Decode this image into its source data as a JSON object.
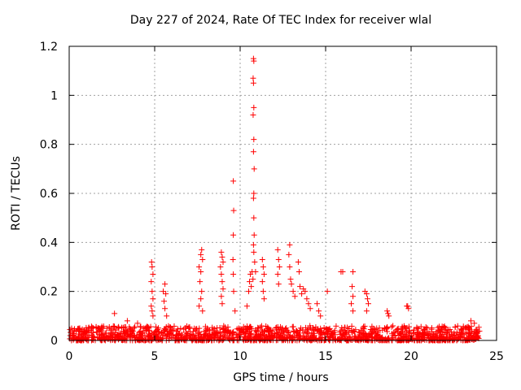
{
  "chart_data": {
    "type": "scatter",
    "title": "Day 227 of 2024, Rate Of TEC Index for receiver wlal",
    "xlabel": "GPS time / hours",
    "ylabel": "ROTI / TECUs",
    "xlim": [
      0,
      25
    ],
    "ylim": [
      0,
      1.2
    ],
    "xticks": [
      "0",
      "5",
      "10",
      "15",
      "20",
      "25"
    ],
    "yticks": [
      "0",
      "0.2",
      "0.4",
      "0.6",
      "0.8",
      "1",
      "1.2"
    ],
    "grid": true,
    "marker": "+",
    "color": "#ff0000",
    "baseline": {
      "x_range": [
        0,
        24
      ],
      "y_range": [
        0.0,
        0.06
      ],
      "description_level": "background noise"
    },
    "series": [
      {
        "name": "ROTI",
        "points": [
          [
            2.65,
            0.11
          ],
          [
            3.4,
            0.08
          ],
          [
            4.0,
            0.07
          ],
          [
            4.82,
            0.32
          ],
          [
            4.85,
            0.3
          ],
          [
            4.9,
            0.27
          ],
          [
            4.8,
            0.24
          ],
          [
            4.85,
            0.2
          ],
          [
            4.9,
            0.17
          ],
          [
            4.8,
            0.14
          ],
          [
            4.85,
            0.12
          ],
          [
            4.9,
            0.1
          ],
          [
            5.5,
            0.2
          ],
          [
            5.6,
            0.23
          ],
          [
            5.65,
            0.19
          ],
          [
            5.55,
            0.16
          ],
          [
            5.6,
            0.13
          ],
          [
            5.7,
            0.1
          ],
          [
            7.6,
            0.3
          ],
          [
            7.7,
            0.35
          ],
          [
            7.75,
            0.37
          ],
          [
            7.8,
            0.33
          ],
          [
            7.7,
            0.28
          ],
          [
            7.65,
            0.24
          ],
          [
            7.75,
            0.2
          ],
          [
            7.7,
            0.17
          ],
          [
            7.6,
            0.14
          ],
          [
            7.8,
            0.12
          ],
          [
            8.9,
            0.36
          ],
          [
            8.95,
            0.34
          ],
          [
            9.0,
            0.32
          ],
          [
            8.85,
            0.3
          ],
          [
            8.9,
            0.27
          ],
          [
            8.95,
            0.24
          ],
          [
            9.0,
            0.21
          ],
          [
            8.9,
            0.18
          ],
          [
            8.95,
            0.15
          ],
          [
            9.6,
            0.65
          ],
          [
            9.62,
            0.53
          ],
          [
            9.6,
            0.43
          ],
          [
            9.58,
            0.33
          ],
          [
            9.6,
            0.27
          ],
          [
            9.62,
            0.2
          ],
          [
            9.7,
            0.12
          ],
          [
            10.4,
            0.14
          ],
          [
            10.5,
            0.2
          ],
          [
            10.55,
            0.24
          ],
          [
            10.6,
            0.27
          ],
          [
            10.65,
            0.22
          ],
          [
            10.7,
            0.28
          ],
          [
            10.78,
            1.15
          ],
          [
            10.8,
            1.14
          ],
          [
            10.76,
            1.07
          ],
          [
            10.78,
            1.05
          ],
          [
            10.8,
            0.95
          ],
          [
            10.76,
            0.92
          ],
          [
            10.8,
            0.82
          ],
          [
            10.78,
            0.77
          ],
          [
            10.82,
            0.7
          ],
          [
            10.8,
            0.6
          ],
          [
            10.78,
            0.58
          ],
          [
            10.8,
            0.5
          ],
          [
            10.82,
            0.43
          ],
          [
            10.78,
            0.39
          ],
          [
            10.8,
            0.36
          ],
          [
            10.85,
            0.32
          ],
          [
            10.9,
            0.28
          ],
          [
            10.75,
            0.25
          ],
          [
            11.3,
            0.33
          ],
          [
            11.35,
            0.3
          ],
          [
            11.4,
            0.27
          ],
          [
            11.3,
            0.24
          ],
          [
            11.35,
            0.2
          ],
          [
            11.4,
            0.17
          ],
          [
            12.2,
            0.37
          ],
          [
            12.25,
            0.33
          ],
          [
            12.3,
            0.3
          ],
          [
            12.2,
            0.27
          ],
          [
            12.25,
            0.23
          ],
          [
            12.9,
            0.39
          ],
          [
            12.85,
            0.35
          ],
          [
            12.9,
            0.3
          ],
          [
            12.95,
            0.25
          ],
          [
            13.0,
            0.23
          ],
          [
            13.1,
            0.2
          ],
          [
            13.2,
            0.18
          ],
          [
            13.4,
            0.32
          ],
          [
            13.45,
            0.28
          ],
          [
            13.5,
            0.22
          ],
          [
            13.6,
            0.19
          ],
          [
            13.7,
            0.21
          ],
          [
            13.8,
            0.2
          ],
          [
            13.9,
            0.17
          ],
          [
            14.0,
            0.15
          ],
          [
            14.1,
            0.13
          ],
          [
            14.5,
            0.15
          ],
          [
            14.6,
            0.12
          ],
          [
            14.7,
            0.1
          ],
          [
            15.1,
            0.2
          ],
          [
            15.9,
            0.28
          ],
          [
            16.0,
            0.28
          ],
          [
            16.6,
            0.28
          ],
          [
            16.55,
            0.22
          ],
          [
            16.6,
            0.18
          ],
          [
            16.5,
            0.15
          ],
          [
            16.6,
            0.12
          ],
          [
            17.3,
            0.2
          ],
          [
            17.4,
            0.19
          ],
          [
            17.45,
            0.17
          ],
          [
            17.5,
            0.15
          ],
          [
            17.4,
            0.12
          ],
          [
            18.6,
            0.12
          ],
          [
            18.65,
            0.11
          ],
          [
            18.7,
            0.1
          ],
          [
            19.75,
            0.14
          ],
          [
            19.8,
            0.14
          ],
          [
            19.85,
            0.13
          ],
          [
            23.5,
            0.08
          ],
          [
            23.7,
            0.07
          ]
        ]
      }
    ]
  }
}
